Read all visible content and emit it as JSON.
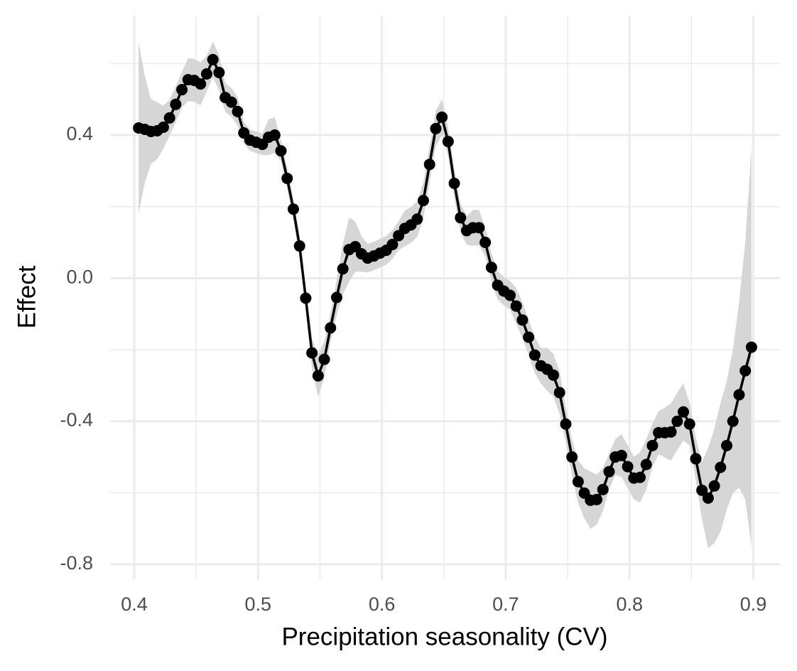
{
  "chart_data": {
    "type": "line",
    "x_label": "Precipitation seasonality (CV)",
    "y_label": "Effect",
    "x": [
      0.4035,
      0.4085,
      0.4135,
      0.4185,
      0.4235,
      0.4285,
      0.4335,
      0.4385,
      0.4435,
      0.4485,
      0.4535,
      0.4585,
      0.4635,
      0.4685,
      0.4735,
      0.4785,
      0.4835,
      0.4885,
      0.4935,
      0.4985,
      0.5035,
      0.5085,
      0.5135,
      0.5185,
      0.5235,
      0.5285,
      0.5335,
      0.5385,
      0.5435,
      0.5485,
      0.5535,
      0.5585,
      0.5635,
      0.5685,
      0.5735,
      0.5785,
      0.5835,
      0.5885,
      0.5935,
      0.5985,
      0.6035,
      0.6085,
      0.6135,
      0.6185,
      0.6235,
      0.6285,
      0.6335,
      0.6385,
      0.6435,
      0.6485,
      0.6535,
      0.6585,
      0.6635,
      0.6685,
      0.6735,
      0.6785,
      0.6835,
      0.6885,
      0.6935,
      0.6985,
      0.7035,
      0.7085,
      0.7135,
      0.7185,
      0.7235,
      0.7285,
      0.7335,
      0.7385,
      0.7435,
      0.7485,
      0.7535,
      0.7585,
      0.7635,
      0.7685,
      0.7735,
      0.7785,
      0.7835,
      0.7885,
      0.7935,
      0.7985,
      0.8035,
      0.8085,
      0.8135,
      0.8185,
      0.8235,
      0.8285,
      0.8335,
      0.8385,
      0.8435,
      0.8485,
      0.8535,
      0.8585,
      0.8635,
      0.8685,
      0.8735,
      0.8785,
      0.8835,
      0.8885,
      0.8935,
      0.8985
    ],
    "series": [
      {
        "color": "#000000",
        "band_color": "#d6d6d6",
        "values": [
          0.42,
          0.416,
          0.41,
          0.412,
          0.422,
          0.448,
          0.486,
          0.527,
          0.555,
          0.553,
          0.543,
          0.571,
          0.611,
          0.575,
          0.505,
          0.492,
          0.466,
          0.406,
          0.386,
          0.38,
          0.374,
          0.394,
          0.4,
          0.356,
          0.279,
          0.193,
          0.09,
          -0.056,
          -0.209,
          -0.273,
          -0.227,
          -0.139,
          -0.054,
          0.026,
          0.08,
          0.088,
          0.068,
          0.056,
          0.062,
          0.07,
          0.078,
          0.094,
          0.119,
          0.139,
          0.149,
          0.165,
          0.217,
          0.318,
          0.418,
          0.45,
          0.382,
          0.265,
          0.169,
          0.133,
          0.141,
          0.141,
          0.1,
          0.03,
          -0.02,
          -0.036,
          -0.048,
          -0.078,
          -0.117,
          -0.165,
          -0.215,
          -0.245,
          -0.255,
          -0.271,
          -0.32,
          -0.408,
          -0.5,
          -0.569,
          -0.601,
          -0.621,
          -0.619,
          -0.591,
          -0.541,
          -0.5,
          -0.496,
          -0.527,
          -0.559,
          -0.557,
          -0.521,
          -0.468,
          -0.432,
          -0.432,
          -0.43,
          -0.4,
          -0.374,
          -0.408,
          -0.505,
          -0.593,
          -0.615,
          -0.581,
          -0.529,
          -0.468,
          -0.4,
          -0.326,
          -0.259,
          -0.193
        ],
        "error": [
          0.24,
          0.15,
          0.09,
          0.08,
          0.06,
          0.05,
          0.05,
          0.05,
          0.06,
          0.06,
          0.06,
          0.05,
          0.05,
          0.05,
          0.04,
          0.04,
          0.04,
          0.03,
          0.03,
          0.03,
          0.03,
          0.05,
          0.05,
          0.03,
          0.03,
          0.03,
          0.03,
          0.03,
          0.04,
          0.06,
          0.05,
          0.04,
          0.05,
          0.07,
          0.09,
          0.07,
          0.05,
          0.04,
          0.04,
          0.04,
          0.04,
          0.04,
          0.04,
          0.05,
          0.05,
          0.05,
          0.05,
          0.05,
          0.05,
          0.05,
          0.04,
          0.04,
          0.04,
          0.04,
          0.05,
          0.05,
          0.04,
          0.04,
          0.04,
          0.04,
          0.04,
          0.05,
          0.05,
          0.05,
          0.05,
          0.05,
          0.06,
          0.06,
          0.06,
          0.05,
          0.05,
          0.06,
          0.07,
          0.08,
          0.07,
          0.06,
          0.05,
          0.05,
          0.06,
          0.06,
          0.06,
          0.07,
          0.07,
          0.06,
          0.06,
          0.07,
          0.08,
          0.08,
          0.08,
          0.06,
          0.06,
          0.08,
          0.14,
          0.16,
          0.18,
          0.18,
          0.2,
          0.26,
          0.36,
          0.56
        ]
      }
    ],
    "xlim": [
      0.3805,
      0.9215
    ],
    "ylim": [
      -0.842,
      0.734
    ],
    "xticks": [
      0.4,
      0.5,
      0.6,
      0.7,
      0.8,
      0.9
    ],
    "yticks": [
      -0.8,
      -0.4,
      {
        "value": 0,
        "label": "0.0"
      },
      0.4
    ],
    "xminor": [
      0.45,
      0.55,
      0.65,
      0.75,
      0.85
    ],
    "yminor": [
      -0.6,
      -0.2,
      0.2,
      0.6
    ],
    "grid": true
  }
}
